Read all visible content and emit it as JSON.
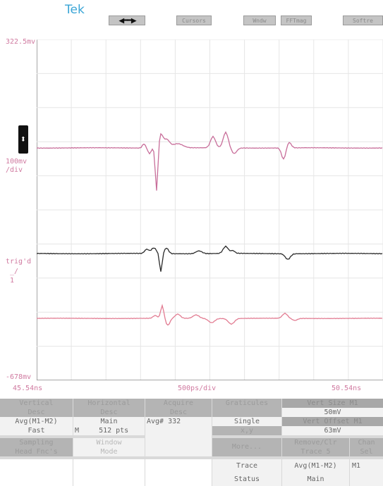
{
  "brand": "Tek",
  "top_buttons": [
    "",
    "Cursors",
    "Wndw",
    "FFTmag",
    "Softre"
  ],
  "screen": {
    "top_voltage": "322.5mv",
    "scale_left": "100mv",
    "scale_left2": "/div",
    "trig_label": "trig'd",
    "trig_label2": "_/",
    "trig_label3": "1",
    "bottom_voltage": "-678mv",
    "time_left": "45.54ns",
    "time_center": "500ps/div",
    "time_right": "50.54ns"
  },
  "menu": {
    "vertical_head": "Vertical",
    "vertical_sub": "Desc",
    "vertical_val1": "Avg(M1-M2)",
    "vertical_val2": "Fast",
    "horizontal_head": "Horizontal",
    "horizontal_sub": "Desc",
    "horizontal_val1": "Main",
    "horizontal_val2": "512 pts",
    "horizontal_marker": "M",
    "acquire_head": "Acquire",
    "acquire_sub": "Desc",
    "acquire_val": "Avg# 332",
    "graticules_head": "Graticules",
    "graticule_single": "Single",
    "graticule_single_sub": "x,y",
    "sampling_head": "Sampling",
    "sampling_sub": "Head Fnc's",
    "window_mode": "Window",
    "window_mode2": "Mode",
    "more": "More...",
    "trace_status": "Trace",
    "trace_status2": "Status",
    "vert_size_head": "Vert Size M1",
    "vert_size_val": "50mV",
    "vert_offset_head": "Vert Offset M1",
    "vert_offset_val": "63mV",
    "remove_clr": "Remove/Clr",
    "remove_clr2": "Trace 5",
    "chan_sel": "Chan",
    "chan_sel2": "Sel",
    "trace_desc": "Avg(M1-M2)",
    "trace_desc2": "Main",
    "chan_val": "M1"
  },
  "colors": {
    "trace_top": "#c86e9a",
    "trace_mid": "#2a2a2a",
    "trace_bot": "#e27c92",
    "grid": "#e6e6e6",
    "accent": "#3aa5d6"
  }
}
